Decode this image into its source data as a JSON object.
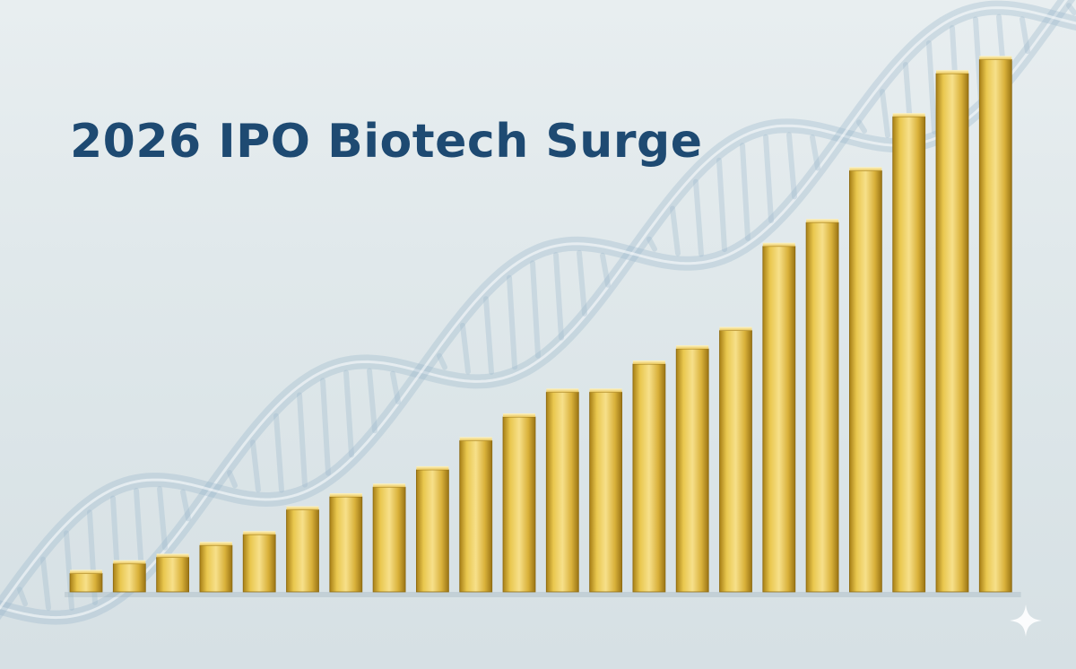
{
  "title": "2026 IPO Biotech Surge",
  "chart_data": {
    "type": "bar",
    "title": "2026 IPO Biotech Surge",
    "values": [
      3.4,
      5.2,
      6.4,
      8.6,
      10.6,
      15.2,
      17.6,
      19.4,
      22.6,
      28.0,
      32.4,
      37.0,
      37.0,
      42.2,
      45.0,
      48.4,
      64.0,
      68.4,
      78.0,
      88.0,
      96.0,
      98.6
    ],
    "value_axis": [
      0,
      100
    ],
    "axis_labels_shown": false,
    "grid": false,
    "legend": "none"
  },
  "colors": {
    "background": "#e3eaed",
    "title": "#1e4a72",
    "bar_light": "#f5dc7a",
    "bar_mid": "#e2bd3c",
    "bar_dark": "#b38a1c",
    "dna": "#9cb8cc"
  },
  "decorations": {
    "dna_helix": "dna-helix",
    "corner_icon": "sparkle-icon"
  }
}
